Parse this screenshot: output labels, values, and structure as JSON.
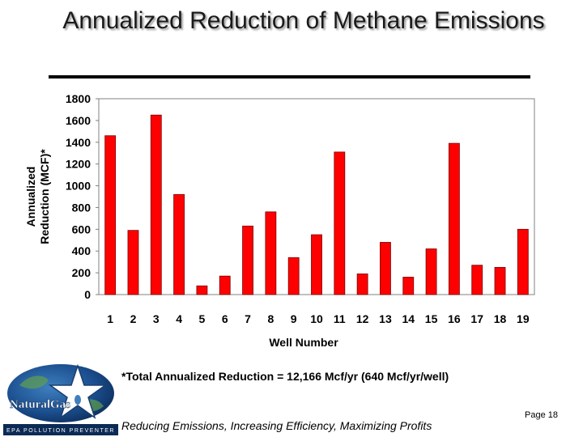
{
  "slide": {
    "title": "Annualized Reduction of Methane Emissions",
    "footnote": "*Total Annualized Reduction = 12,166 Mcf/yr (640 Mcf/yr/well)",
    "tagline": "Reducing Emissions, Increasing Efficiency, Maximizing Profits",
    "page_number": "Page 18"
  },
  "logo": {
    "name": "NaturalGas",
    "subtitle": "EPA POLLUTION PREVENTER",
    "icon": "star-logo-icon"
  },
  "chart_data": {
    "type": "bar",
    "title": "Annualized Reduction of Methane Emissions",
    "xlabel": "Well Number",
    "ylabel": "Annualized Reduction (MCF)*",
    "ylim": [
      0,
      1800
    ],
    "yticks": [
      0,
      200,
      400,
      600,
      800,
      1000,
      1200,
      1400,
      1600,
      1800
    ],
    "categories": [
      "1",
      "2",
      "3",
      "4",
      "5",
      "6",
      "7",
      "8",
      "9",
      "10",
      "11",
      "12",
      "13",
      "14",
      "15",
      "16",
      "17",
      "18",
      "19"
    ],
    "values": [
      1460,
      590,
      1650,
      920,
      80,
      170,
      630,
      760,
      340,
      550,
      1310,
      190,
      480,
      160,
      420,
      1390,
      270,
      250,
      600
    ],
    "bar_color": "#ff0000",
    "grid": false,
    "legend": "none"
  }
}
